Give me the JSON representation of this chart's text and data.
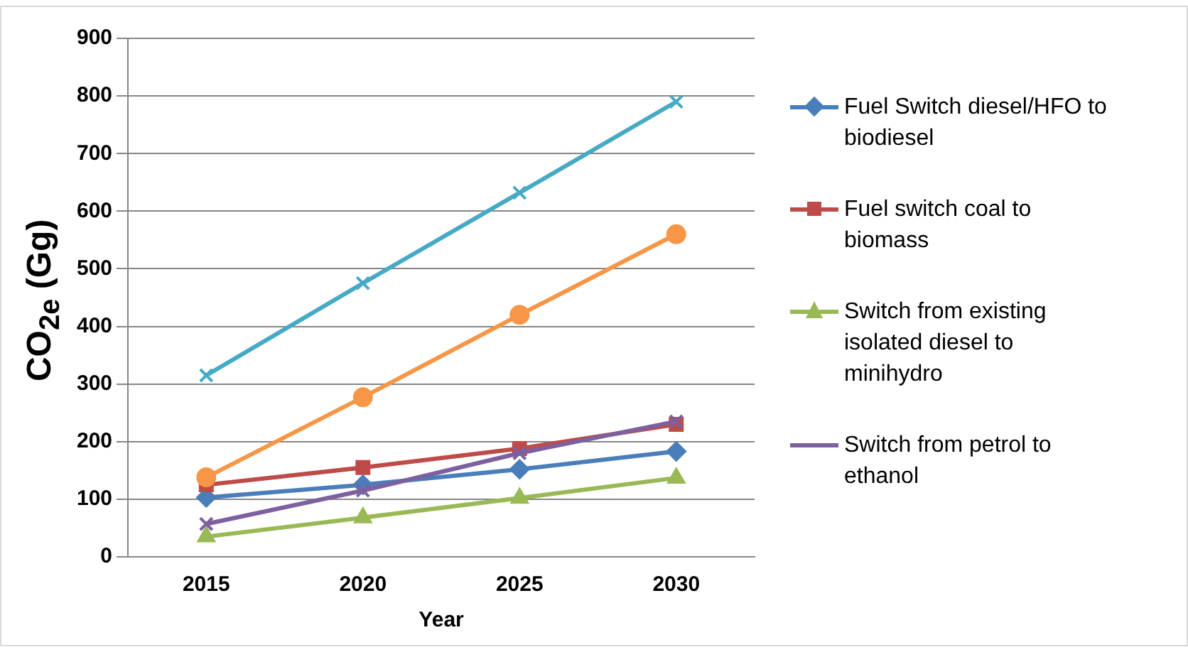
{
  "chart_data": {
    "type": "line",
    "xlabel": "Year",
    "ylabel": "CO$_{2e}$ (Gg)",
    "categories": [
      "2015",
      "2020",
      "2025",
      "2030"
    ],
    "ylim": [
      0,
      900
    ],
    "yticks": [
      0,
      100,
      200,
      300,
      400,
      500,
      600,
      700,
      800,
      900
    ],
    "grid": "y",
    "legend": "right",
    "series": [
      {
        "name": "Fuel Switch diesel/HFO to biodiesel",
        "color": "#4a7ebb",
        "marker": "diamond",
        "values": [
          103,
          125,
          152,
          183
        ]
      },
      {
        "name": "Fuel switch coal to biomass",
        "color": "#be4b48",
        "marker": "square",
        "values": [
          125,
          155,
          188,
          230
        ]
      },
      {
        "name": "Switch from existing isolated diesel to minihydro",
        "color": "#98b954",
        "marker": "triangle",
        "values": [
          35,
          68,
          102,
          137
        ]
      },
      {
        "name": "Switch from petrol to ethanol",
        "color": "#7d60a0",
        "marker": "cross",
        "values": [
          57,
          115,
          180,
          235
        ]
      },
      {
        "color": "#46aac5",
        "marker": "cross",
        "values": [
          315,
          475,
          632,
          790
        ]
      },
      {
        "color": "#f79646",
        "marker": "circle",
        "values": [
          138,
          277,
          420,
          560
        ]
      }
    ]
  }
}
